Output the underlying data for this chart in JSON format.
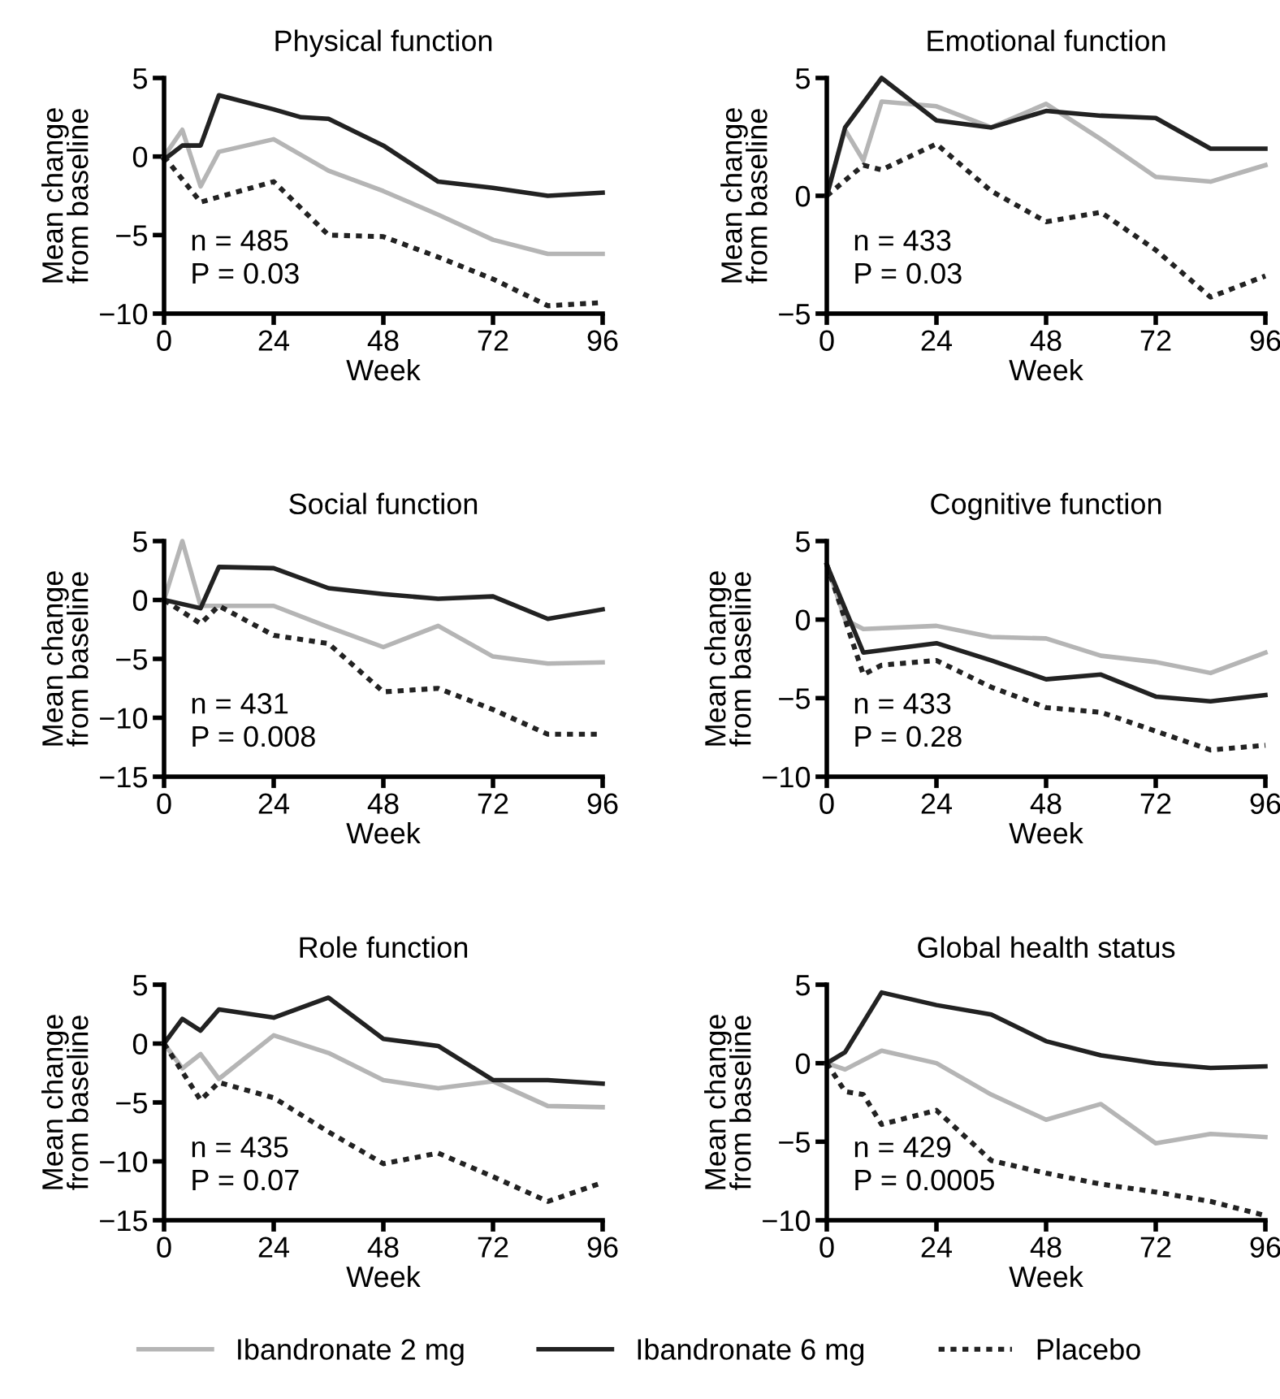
{
  "chart_data": [
    {
      "type": "line",
      "title": "Physical function",
      "xlabel": "Week",
      "ylabel": "Mean change\nfrom baseline",
      "xlim": [
        0,
        96
      ],
      "xticks": [
        0,
        24,
        48,
        72,
        96
      ],
      "ylim": [
        -10,
        5
      ],
      "yticks": [
        -10,
        -5,
        0,
        5
      ],
      "annotations": [
        "n = 485",
        "P = 0.03"
      ],
      "legend": "bottom",
      "series": [
        {
          "name": "Ibandronate 2 mg",
          "color": "#b5b5b5",
          "line_style": "solid",
          "x": [
            0,
            4,
            8,
            12,
            24,
            36,
            48,
            60,
            72,
            84,
            96
          ],
          "values": [
            0,
            1.7,
            -1.9,
            0.3,
            1.1,
            -0.9,
            -2.2,
            -3.7,
            -5.3,
            -6.2,
            -6.2
          ]
        },
        {
          "name": "Ibandronate 6 mg",
          "color": "#222222",
          "line_style": "solid",
          "x": [
            0,
            4,
            8,
            12,
            24,
            30,
            36,
            48,
            60,
            72,
            84,
            96
          ],
          "values": [
            -0.2,
            0.7,
            0.7,
            3.9,
            3.0,
            2.5,
            2.4,
            0.7,
            -1.6,
            -2.0,
            -2.5,
            -2.3
          ]
        },
        {
          "name": "Placebo",
          "color": "#222222",
          "line_style": "dotted",
          "x": [
            0,
            8,
            24,
            36,
            48,
            60,
            72,
            84,
            96
          ],
          "values": [
            0,
            -2.9,
            -1.6,
            -5.0,
            -5.1,
            -6.4,
            -7.8,
            -9.5,
            -9.3
          ]
        }
      ]
    },
    {
      "type": "line",
      "title": "Emotional function",
      "xlabel": "Week",
      "ylabel": "Mean change\nfrom baseline",
      "xlim": [
        0,
        96
      ],
      "xticks": [
        0,
        24,
        48,
        72,
        96
      ],
      "ylim": [
        -5,
        5
      ],
      "yticks": [
        -5,
        0,
        5
      ],
      "annotations": [
        "n = 433",
        "P = 0.03"
      ],
      "series": [
        {
          "color": "#b5b5b5",
          "line_style": "solid",
          "x": [
            0,
            4,
            8,
            12,
            24,
            36,
            48,
            60,
            72,
            84,
            96
          ],
          "values": [
            0,
            2.8,
            1.5,
            4.0,
            3.8,
            2.9,
            3.9,
            2.4,
            0.8,
            0.6,
            1.3
          ]
        },
        {
          "color": "#222222",
          "line_style": "solid",
          "x": [
            0,
            4,
            12,
            24,
            36,
            48,
            60,
            72,
            84,
            96
          ],
          "values": [
            0,
            2.9,
            5.0,
            3.2,
            2.9,
            3.6,
            3.4,
            3.3,
            2.0,
            2.0
          ]
        },
        {
          "color": "#222222",
          "line_style": "dotted",
          "x": [
            0,
            8,
            12,
            24,
            36,
            48,
            60,
            72,
            84,
            96
          ],
          "values": [
            0,
            1.3,
            1.1,
            2.2,
            0.2,
            -1.1,
            -0.7,
            -2.3,
            -4.3,
            -3.4
          ]
        }
      ]
    },
    {
      "type": "line",
      "title": "Social function",
      "xlabel": "Week",
      "ylabel": "Mean change\nfrom baseline",
      "xlim": [
        0,
        96
      ],
      "xticks": [
        0,
        24,
        48,
        72,
        96
      ],
      "ylim": [
        -15,
        5
      ],
      "yticks": [
        -15,
        -10,
        -5,
        0,
        5
      ],
      "annotations": [
        "n = 431",
        "P = 0.008"
      ],
      "series": [
        {
          "color": "#b5b5b5",
          "line_style": "solid",
          "x": [
            0,
            4,
            8,
            12,
            24,
            36,
            48,
            60,
            72,
            84,
            96
          ],
          "values": [
            0,
            5.0,
            -0.5,
            -0.5,
            -0.5,
            -2.3,
            -4.0,
            -2.2,
            -4.8,
            -5.4,
            -5.3
          ]
        },
        {
          "color": "#222222",
          "line_style": "solid",
          "x": [
            0,
            8,
            12,
            24,
            36,
            48,
            60,
            72,
            84,
            96
          ],
          "values": [
            0,
            -0.7,
            2.8,
            2.7,
            1.0,
            0.5,
            0.1,
            0.3,
            -1.6,
            -0.8
          ]
        },
        {
          "color": "#222222",
          "line_style": "dotted",
          "x": [
            0,
            8,
            12,
            24,
            36,
            48,
            60,
            72,
            84,
            96
          ],
          "values": [
            0,
            -2.0,
            -0.5,
            -3.0,
            -3.7,
            -7.8,
            -7.5,
            -9.3,
            -11.4,
            -11.4
          ]
        }
      ]
    },
    {
      "type": "line",
      "title": "Cognitive function",
      "xlabel": "Week",
      "ylabel": "Mean change\nfrom baseline",
      "xlim": [
        0,
        96
      ],
      "xticks": [
        0,
        24,
        48,
        72,
        96
      ],
      "ylim": [
        -10,
        5
      ],
      "yticks": [
        -10,
        -5,
        0,
        5
      ],
      "annotations": [
        "n = 433",
        "P = 0.28"
      ],
      "series": [
        {
          "color": "#b5b5b5",
          "line_style": "solid",
          "x": [
            0,
            4,
            8,
            24,
            36,
            48,
            60,
            72,
            84,
            96
          ],
          "values": [
            3.5,
            0,
            -0.6,
            -0.4,
            -1.1,
            -1.2,
            -2.3,
            -2.7,
            -3.4,
            -2.1
          ]
        },
        {
          "color": "#222222",
          "line_style": "solid",
          "x": [
            0,
            8,
            24,
            36,
            48,
            60,
            72,
            84,
            96
          ],
          "values": [
            3.5,
            -2.1,
            -1.5,
            -2.6,
            -3.8,
            -3.5,
            -4.9,
            -5.2,
            -4.8
          ]
        },
        {
          "color": "#222222",
          "line_style": "dotted",
          "x": [
            0,
            8,
            12,
            24,
            36,
            48,
            60,
            72,
            84,
            96
          ],
          "values": [
            3.5,
            -3.5,
            -2.9,
            -2.6,
            -4.3,
            -5.6,
            -5.9,
            -7.1,
            -8.3,
            -8.0
          ]
        }
      ]
    },
    {
      "type": "line",
      "title": "Role function",
      "xlabel": "Week",
      "ylabel": "Mean change\nfrom baseline",
      "xlim": [
        0,
        96
      ],
      "xticks": [
        0,
        24,
        48,
        72,
        96
      ],
      "ylim": [
        -15,
        5
      ],
      "yticks": [
        -15,
        -10,
        -5,
        0,
        5
      ],
      "annotations": [
        "n = 435",
        "P = 0.07"
      ],
      "series": [
        {
          "color": "#b5b5b5",
          "line_style": "solid",
          "x": [
            0,
            4,
            8,
            12,
            24,
            36,
            48,
            60,
            72,
            84,
            96
          ],
          "values": [
            0,
            -2.1,
            -0.9,
            -3.0,
            0.7,
            -0.8,
            -3.1,
            -3.8,
            -3.2,
            -5.3,
            -5.4
          ]
        },
        {
          "color": "#222222",
          "line_style": "solid",
          "x": [
            0,
            4,
            8,
            12,
            24,
            36,
            48,
            60,
            72,
            84,
            96
          ],
          "values": [
            0,
            2.1,
            1.1,
            2.9,
            2.2,
            3.9,
            0.4,
            -0.2,
            -3.1,
            -3.1,
            -3.4
          ]
        },
        {
          "color": "#222222",
          "line_style": "dotted",
          "x": [
            0,
            8,
            12,
            24,
            36,
            48,
            60,
            72,
            84,
            96
          ],
          "values": [
            0,
            -4.8,
            -3.3,
            -4.6,
            -7.5,
            -10.2,
            -9.3,
            -11.3,
            -13.4,
            -11.8
          ]
        }
      ]
    },
    {
      "type": "line",
      "title": "Global health status",
      "xlabel": "Week",
      "ylabel": "Mean change\nfrom baseline",
      "xlim": [
        0,
        96
      ],
      "xticks": [
        0,
        24,
        48,
        72,
        96
      ],
      "ylim": [
        -10,
        5
      ],
      "yticks": [
        -10,
        -5,
        0,
        5
      ],
      "annotations": [
        "n = 429",
        "P = 0.0005"
      ],
      "series": [
        {
          "color": "#b5b5b5",
          "line_style": "solid",
          "x": [
            0,
            4,
            12,
            24,
            36,
            48,
            60,
            72,
            84,
            96
          ],
          "values": [
            0,
            -0.4,
            0.8,
            0,
            -2.0,
            -3.6,
            -2.6,
            -5.1,
            -4.5,
            -4.7
          ]
        },
        {
          "color": "#222222",
          "line_style": "solid",
          "x": [
            0,
            4,
            12,
            24,
            36,
            48,
            60,
            72,
            84,
            96
          ],
          "values": [
            0,
            0.7,
            4.5,
            3.7,
            3.1,
            1.4,
            0.5,
            0,
            -0.3,
            -0.2
          ]
        },
        {
          "color": "#222222",
          "line_style": "dotted",
          "x": [
            0,
            4,
            8,
            12,
            24,
            36,
            48,
            60,
            72,
            84,
            96
          ],
          "values": [
            0,
            -1.8,
            -2.0,
            -3.9,
            -3.0,
            -6.2,
            -7.0,
            -7.7,
            -8.2,
            -8.8,
            -9.7
          ]
        }
      ]
    }
  ]
}
